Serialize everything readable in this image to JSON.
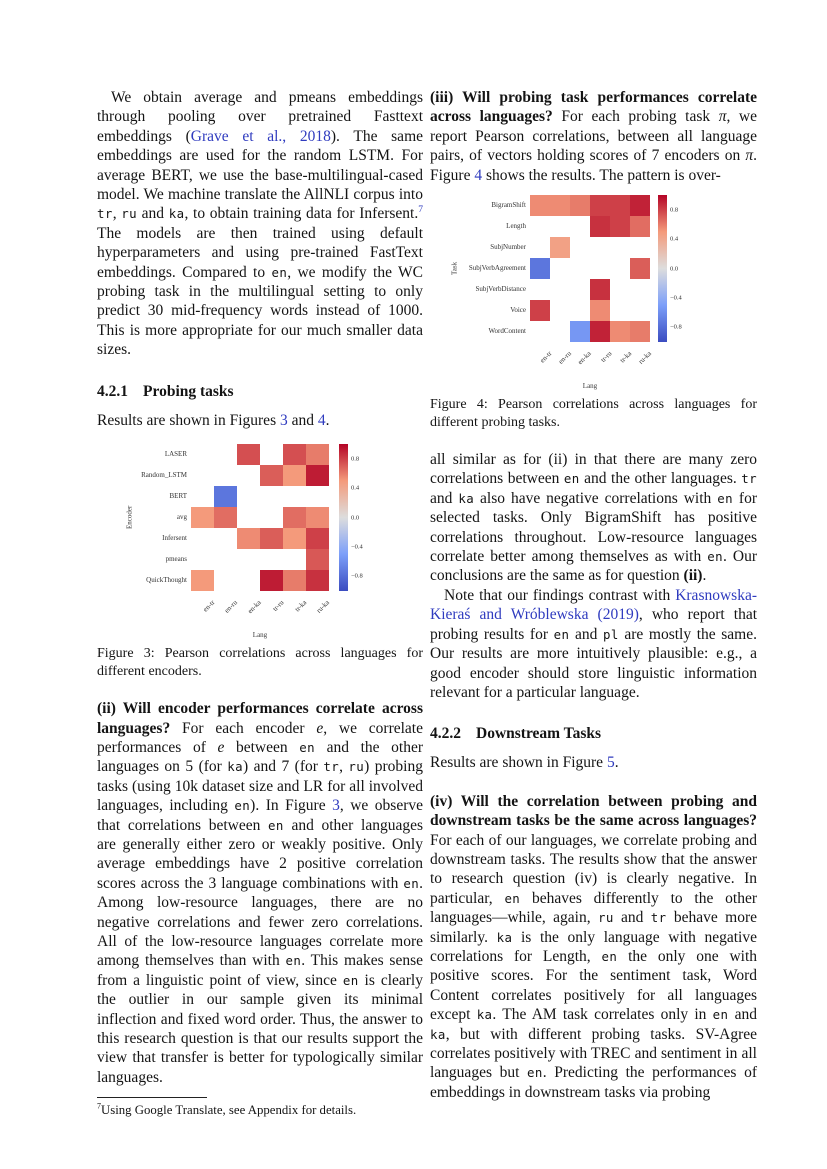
{
  "colors": {
    "link": "#2f3bbf",
    "background": "#ffffff",
    "heatmap_anchors": [
      "#3b4cc0",
      "#7c9ff9",
      "#dddddd",
      "#f49a7b",
      "#b40426"
    ]
  },
  "left_column": {
    "para1": [
      {
        "t": "We obtain average and pmeans embeddings through pooling over pretrained Fasttext embeddings ("
      },
      {
        "t": "Grave et al., 2018",
        "s": "link"
      },
      {
        "t": "). The same embeddings are used for the random LSTM. For average BERT, we use the base-multilingual-cased model. We machine translate the AllNLI corpus into "
      },
      {
        "t": "tr",
        "s": "code"
      },
      {
        "t": ", "
      },
      {
        "t": "ru",
        "s": "code"
      },
      {
        "t": " and "
      },
      {
        "t": "ka",
        "s": "code"
      },
      {
        "t": ", to obtain training data for Infersent."
      },
      {
        "t": "7",
        "s": "suplink"
      },
      {
        "t": " The models are then trained using default hyperparameters and using pre-trained FastText embeddings. Compared to "
      },
      {
        "t": "en",
        "s": "code"
      },
      {
        "t": ", we modify the WC probing task in the multilingual setting to only predict 30 mid-frequency words instead of 1000. This is more appropriate for our much smaller data sizes."
      }
    ],
    "heading_421": {
      "num": "4.2.1",
      "title": "Probing tasks"
    },
    "results_line": [
      {
        "t": "Results are shown in Figures "
      },
      {
        "t": "3",
        "s": "link"
      },
      {
        "t": " and "
      },
      {
        "t": "4",
        "s": "link"
      },
      {
        "t": "."
      }
    ],
    "fig3_caption": "Figure 3: Pearson correlations across languages for different encoders.",
    "para_ii": [
      {
        "t": "(ii) Will encoder performances correlate across languages?",
        "s": "bold"
      },
      {
        "t": "  For each encoder "
      },
      {
        "t": "e",
        "s": "i"
      },
      {
        "t": ", we correlate performances of "
      },
      {
        "t": "e",
        "s": "i"
      },
      {
        "t": " between "
      },
      {
        "t": "en",
        "s": "code"
      },
      {
        "t": " and the other languages on 5 (for "
      },
      {
        "t": "ka",
        "s": "code"
      },
      {
        "t": ") and 7 (for "
      },
      {
        "t": "tr",
        "s": "code"
      },
      {
        "t": ", "
      },
      {
        "t": "ru",
        "s": "code"
      },
      {
        "t": ") probing tasks (using 10k dataset size and LR for all involved languages, including "
      },
      {
        "t": "en",
        "s": "code"
      },
      {
        "t": "). In Figure "
      },
      {
        "t": "3",
        "s": "link"
      },
      {
        "t": ", we observe that correlations between "
      },
      {
        "t": "en",
        "s": "code"
      },
      {
        "t": " and other languages are generally either zero or weakly positive. Only average embeddings have 2 positive correlation scores across the 3 language combinations with "
      },
      {
        "t": "en",
        "s": "code"
      },
      {
        "t": ". Among low-resource languages, there are no negative correlations and fewer zero correlations. All of the low-resource languages correlate more among themselves than with "
      },
      {
        "t": "en",
        "s": "code"
      },
      {
        "t": ". This makes sense from a linguistic point of view, since "
      },
      {
        "t": "en",
        "s": "code"
      },
      {
        "t": " is clearly the outlier in our sample given its minimal inflection and fixed word order. Thus, the answer to this research question is that our results support the view that transfer is better for typologically similar languages."
      }
    ],
    "footnote": [
      {
        "t": "7",
        "s": "sup"
      },
      {
        "t": "Using Google Translate, see Appendix for details."
      }
    ]
  },
  "right_column": {
    "para_iii": [
      {
        "t": "(iii) Will probing task performances correlate across languages?",
        "s": "bold"
      },
      {
        "t": "  For each probing task "
      },
      {
        "t": "π",
        "s": "i"
      },
      {
        "t": ", we report Pearson correlations, between all language pairs, of vectors holding scores of 7 encoders on "
      },
      {
        "t": "π",
        "s": "i"
      },
      {
        "t": ". Figure "
      },
      {
        "t": "4",
        "s": "link"
      },
      {
        "t": " shows the results. The pattern is over-"
      }
    ],
    "fig4_caption": "Figure 4: Pearson correlations across languages for different probing tasks.",
    "para_after_fig4": [
      {
        "t": "all similar as for (ii) in that there are many zero correlations between "
      },
      {
        "t": "en",
        "s": "code"
      },
      {
        "t": " and the other languages. "
      },
      {
        "t": "tr",
        "s": "code"
      },
      {
        "t": " and "
      },
      {
        "t": "ka",
        "s": "code"
      },
      {
        "t": " also have negative correlations with "
      },
      {
        "t": "en",
        "s": "code"
      },
      {
        "t": " for selected tasks. Only BigramShift has positive correlations throughout. Low-resource languages correlate better among themselves as with "
      },
      {
        "t": "en",
        "s": "code"
      },
      {
        "t": ". Our conclusions are the same as for question "
      },
      {
        "t": "(ii)",
        "s": "bold"
      },
      {
        "t": "."
      }
    ],
    "para_note": [
      {
        "t": "Note that our findings contrast with "
      },
      {
        "t": "Krasnowska-Kieraś and Wróblewska (2019)",
        "s": "link"
      },
      {
        "t": ", who report that probing results for "
      },
      {
        "t": "en",
        "s": "code"
      },
      {
        "t": " and "
      },
      {
        "t": "pl",
        "s": "code"
      },
      {
        "t": " are mostly the same. Our results are more intuitively plausible: e.g., a good encoder should store linguistic information relevant for a particular language."
      }
    ],
    "heading_422": {
      "num": "4.2.2",
      "title": "Downstream Tasks"
    },
    "results_line": [
      {
        "t": "Results are shown in Figure "
      },
      {
        "t": "5",
        "s": "link"
      },
      {
        "t": "."
      }
    ],
    "para_iv": [
      {
        "t": "(iv) Will the correlation between probing and downstream tasks be the same across languages?",
        "s": "bold"
      },
      {
        "t": "  For each of our languages, we correlate probing and downstream tasks. The results show that the answer to research question (iv) is clearly negative. In particular, "
      },
      {
        "t": "en",
        "s": "code"
      },
      {
        "t": " behaves differently to the other languages—while, again, "
      },
      {
        "t": "ru",
        "s": "code"
      },
      {
        "t": " and "
      },
      {
        "t": "tr",
        "s": "code"
      },
      {
        "t": " behave more similarly. "
      },
      {
        "t": "ka",
        "s": "code"
      },
      {
        "t": " is the only language with negative correlations for Length, "
      },
      {
        "t": "en",
        "s": "code"
      },
      {
        "t": " the only one with positive scores. For the sentiment task, Word Content correlates positively for all languages except "
      },
      {
        "t": "ka",
        "s": "code"
      },
      {
        "t": ". The AM task correlates only in "
      },
      {
        "t": "en",
        "s": "code"
      },
      {
        "t": " and "
      },
      {
        "t": "ka",
        "s": "code"
      },
      {
        "t": ", but with different probing tasks. SV-Agree correlates positively with TREC and sentiment in all languages but "
      },
      {
        "t": "en",
        "s": "code"
      },
      {
        "t": ". Predicting the performances of embeddings in downstream tasks via probing"
      }
    ]
  },
  "chart_data": [
    {
      "type": "heatmap",
      "title": "Figure 3",
      "ylabel": "Encoder",
      "xlabel": "Lang",
      "rows": [
        "LASER",
        "Random_LSTM",
        "BERT",
        "avg",
        "Infersent",
        "pmeans",
        "QuickThought"
      ],
      "cols": [
        "en-tr",
        "en-ru",
        "en-ka",
        "tr-ru",
        "tr-ka",
        "ru-ka"
      ],
      "values": [
        [
          null,
          null,
          0.75,
          null,
          0.75,
          0.6
        ],
        [
          null,
          null,
          null,
          0.7,
          0.5,
          0.92
        ],
        [
          null,
          -0.75,
          null,
          null,
          null,
          null
        ],
        [
          0.5,
          0.65,
          null,
          null,
          0.65,
          0.55
        ],
        [
          null,
          null,
          0.55,
          0.7,
          0.5,
          0.8
        ],
        [
          null,
          null,
          null,
          null,
          null,
          0.72
        ],
        [
          0.5,
          null,
          null,
          0.92,
          0.6,
          0.85
        ]
      ],
      "vmin": -1,
      "vmax": 1,
      "colorbar_ticks": [
        0.8,
        0.4,
        0.0,
        -0.4,
        -0.8
      ],
      "colorbar_tick_labels": [
        "0.8",
        "0.4",
        "0.0",
        "−0.4",
        "−0.8"
      ],
      "legend_position": "right",
      "grid": false
    },
    {
      "type": "heatmap",
      "title": "Figure 4",
      "ylabel": "Task",
      "xlabel": "Lang",
      "rows": [
        "BigramShift",
        "Length",
        "SubjNumber",
        "SubjVerbAgreement",
        "SubjVerbDistance",
        "Voice",
        "WordContent"
      ],
      "cols": [
        "en-tr",
        "en-ru",
        "en-ka",
        "tr-ru",
        "tr-ka",
        "ru-ka"
      ],
      "values": [
        [
          0.55,
          0.55,
          0.6,
          0.8,
          0.8,
          0.9
        ],
        [
          null,
          null,
          null,
          0.85,
          0.8,
          0.65
        ],
        [
          null,
          0.45,
          null,
          null,
          null,
          null
        ],
        [
          -0.75,
          null,
          null,
          null,
          null,
          0.7
        ],
        [
          null,
          null,
          null,
          0.85,
          null,
          null
        ],
        [
          0.8,
          null,
          null,
          0.55,
          null,
          null
        ],
        [
          null,
          null,
          -0.55,
          0.9,
          0.55,
          0.6
        ]
      ],
      "vmin": -1,
      "vmax": 1,
      "colorbar_ticks": [
        0.8,
        0.4,
        0.0,
        -0.4,
        -0.8
      ],
      "colorbar_tick_labels": [
        "0.8",
        "0.4",
        "0.0",
        "−0.4",
        "−0.8"
      ],
      "legend_position": "right",
      "grid": false
    }
  ]
}
